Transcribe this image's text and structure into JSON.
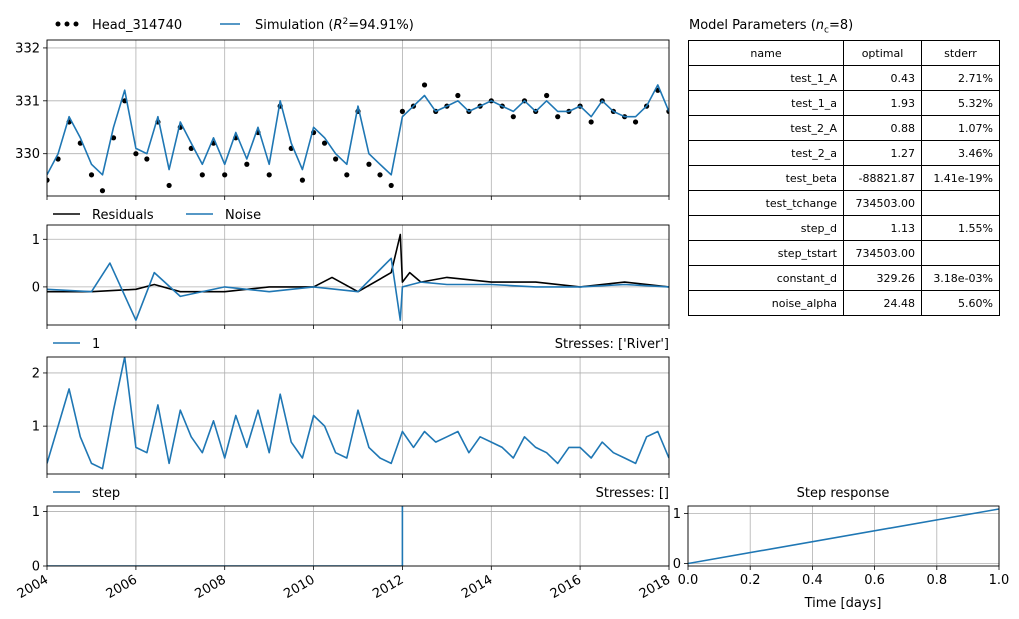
{
  "colors": {
    "head": "#000000",
    "simulation": "#1f77b4",
    "residuals": "#000000",
    "noise": "#1f77b4",
    "stress": "#1f77b4",
    "step": "#1f77b4",
    "grid": "#b0b0b0"
  },
  "legend": {
    "head": "Head_314740",
    "simulation_prefix": "Simulation (",
    "r2_symbol": "R",
    "r2_sup": "2",
    "simulation_suffix": "=94.91%)",
    "residuals": "Residuals",
    "noise": "Noise",
    "river_series": "1",
    "step_series": "step"
  },
  "stresses_labels": {
    "river": "Stresses: ['River']",
    "step": "Stresses: []"
  },
  "parameters": {
    "title_prefix": "Model Parameters (",
    "title_symbol": "n",
    "title_sub": "c",
    "title_suffix": "=8)",
    "columns": [
      "name",
      "optimal",
      "stderr"
    ],
    "rows": [
      [
        "test_1_A",
        "0.43",
        "2.71%"
      ],
      [
        "test_1_a",
        "1.93",
        "5.32%"
      ],
      [
        "test_2_A",
        "0.88",
        "1.07%"
      ],
      [
        "test_2_a",
        "1.27",
        "3.46%"
      ],
      [
        "test_beta",
        "-88821.87",
        "1.41e-19%"
      ],
      [
        "test_tchange",
        "734503.00",
        ""
      ],
      [
        "step_d",
        "1.13",
        "1.55%"
      ],
      [
        "step_tstart",
        "734503.00",
        ""
      ],
      [
        "constant_d",
        "329.26",
        "3.18e-03%"
      ],
      [
        "noise_alpha",
        "24.48",
        "5.60%"
      ]
    ]
  },
  "step_response": {
    "title": "Step response",
    "xlabel": "Time [days]"
  },
  "chart_data": [
    {
      "type": "line",
      "panel": "heads",
      "title": "",
      "xlabel": "",
      "ylabel": "",
      "xlim": [
        "2004-01-01",
        "2018-01-01"
      ],
      "ylim": [
        329.2,
        332.15
      ],
      "yticks": [
        330,
        331,
        332
      ],
      "grid": true,
      "legend": "top-left, above axes",
      "series": [
        {
          "name": "Head_314740",
          "style": "markers",
          "x": [
            "2004-01-01",
            "2004-04-01",
            "2004-07-01",
            "2004-10-01",
            "2005-01-01",
            "2005-04-01",
            "2005-07-01",
            "2005-10-01",
            "2006-01-01",
            "2006-04-01",
            "2006-07-01",
            "2006-10-01",
            "2007-01-01",
            "2007-04-01",
            "2007-07-01",
            "2007-10-01",
            "2008-01-01",
            "2008-04-01",
            "2008-07-01",
            "2008-10-01",
            "2009-01-01",
            "2009-04-01",
            "2009-07-01",
            "2009-10-01",
            "2010-01-01",
            "2010-04-01",
            "2010-07-01",
            "2010-10-01",
            "2011-01-01",
            "2011-04-01",
            "2011-07-01",
            "2011-10-01",
            "2012-01-01",
            "2012-04-01",
            "2012-07-01",
            "2012-10-01",
            "2013-01-01",
            "2013-04-01",
            "2013-07-01",
            "2013-10-01",
            "2014-01-01",
            "2014-04-01",
            "2014-07-01",
            "2014-10-01",
            "2015-01-01",
            "2015-04-01",
            "2015-07-01",
            "2015-10-01",
            "2016-01-01",
            "2016-04-01",
            "2016-07-01",
            "2016-10-01",
            "2017-01-01",
            "2017-04-01",
            "2017-07-01",
            "2017-10-01",
            "2017-12-31"
          ],
          "y": [
            329.5,
            329.9,
            330.6,
            330.2,
            329.6,
            329.3,
            330.3,
            331.0,
            330.0,
            329.9,
            330.6,
            329.4,
            330.5,
            330.1,
            329.6,
            330.2,
            329.6,
            330.3,
            329.8,
            330.4,
            329.6,
            330.9,
            330.1,
            329.5,
            330.4,
            330.2,
            329.9,
            329.6,
            330.8,
            329.8,
            329.6,
            329.4,
            330.8,
            330.9,
            331.3,
            330.8,
            330.9,
            331.1,
            330.8,
            330.9,
            331.0,
            330.9,
            330.7,
            331.0,
            330.8,
            331.1,
            330.7,
            330.8,
            330.9,
            330.6,
            331.0,
            330.8,
            330.7,
            330.6,
            330.9,
            331.2,
            330.8
          ]
        },
        {
          "name": "Simulation (R2=94.91%)",
          "style": "line",
          "x": [
            "2004-01-01",
            "2004-04-01",
            "2004-07-01",
            "2004-10-01",
            "2005-01-01",
            "2005-04-01",
            "2005-07-01",
            "2005-10-01",
            "2006-01-01",
            "2006-04-01",
            "2006-07-01",
            "2006-10-01",
            "2007-01-01",
            "2007-04-01",
            "2007-07-01",
            "2007-10-01",
            "2008-01-01",
            "2008-04-01",
            "2008-07-01",
            "2008-10-01",
            "2009-01-01",
            "2009-04-01",
            "2009-07-01",
            "2009-10-01",
            "2010-01-01",
            "2010-04-01",
            "2010-07-01",
            "2010-10-01",
            "2011-01-01",
            "2011-04-01",
            "2011-07-01",
            "2011-10-01",
            "2012-01-01",
            "2012-04-01",
            "2012-07-01",
            "2012-10-01",
            "2013-01-01",
            "2013-04-01",
            "2013-07-01",
            "2013-10-01",
            "2014-01-01",
            "2014-04-01",
            "2014-07-01",
            "2014-10-01",
            "2015-01-01",
            "2015-04-01",
            "2015-07-01",
            "2015-10-01",
            "2016-01-01",
            "2016-04-01",
            "2016-07-01",
            "2016-10-01",
            "2017-01-01",
            "2017-04-01",
            "2017-07-01",
            "2017-10-01",
            "2017-12-31"
          ],
          "y": [
            329.6,
            330.0,
            330.7,
            330.3,
            329.8,
            329.6,
            330.5,
            331.2,
            330.1,
            330.0,
            330.7,
            329.7,
            330.6,
            330.2,
            329.8,
            330.3,
            329.8,
            330.4,
            329.9,
            330.5,
            329.8,
            331.0,
            330.2,
            329.7,
            330.5,
            330.3,
            330.0,
            329.8,
            330.9,
            330.0,
            329.8,
            329.6,
            330.7,
            330.9,
            331.1,
            330.8,
            330.9,
            331.0,
            330.8,
            330.9,
            331.0,
            330.9,
            330.8,
            331.0,
            330.8,
            331.0,
            330.8,
            330.8,
            330.9,
            330.7,
            331.0,
            330.8,
            330.7,
            330.7,
            330.9,
            331.3,
            330.8
          ]
        }
      ]
    },
    {
      "type": "line",
      "panel": "residuals",
      "title": "",
      "xlabel": "",
      "ylabel": "",
      "xlim": [
        "2004-01-01",
        "2018-01-01"
      ],
      "ylim": [
        -0.8,
        1.3
      ],
      "yticks": [
        0,
        1
      ],
      "grid": true,
      "legend": "top-left, above axes",
      "series": [
        {
          "name": "Residuals",
          "x": [
            "2004-01-01",
            "2005-01-01",
            "2006-01-01",
            "2006-06-01",
            "2007-01-01",
            "2008-01-01",
            "2009-01-01",
            "2010-01-01",
            "2010-06-01",
            "2011-01-01",
            "2011-10-01",
            "2011-12-15",
            "2012-01-01",
            "2012-03-01",
            "2012-06-01",
            "2013-01-01",
            "2014-01-01",
            "2015-01-01",
            "2016-01-01",
            "2017-01-01",
            "2017-12-31"
          ],
          "y": [
            -0.1,
            -0.1,
            -0.05,
            0.05,
            -0.1,
            -0.1,
            0.0,
            0.0,
            0.2,
            -0.1,
            0.3,
            1.1,
            0.1,
            0.3,
            0.1,
            0.2,
            0.1,
            0.1,
            0.0,
            0.1,
            0.0
          ]
        },
        {
          "name": "Noise",
          "x": [
            "2004-01-01",
            "2005-01-01",
            "2005-06-01",
            "2006-01-01",
            "2006-06-01",
            "2007-01-01",
            "2008-01-01",
            "2009-01-01",
            "2010-01-01",
            "2011-01-01",
            "2011-10-01",
            "2011-12-15",
            "2012-01-01",
            "2012-06-01",
            "2013-01-01",
            "2014-01-01",
            "2015-01-01",
            "2016-01-01",
            "2017-01-01",
            "2017-12-31"
          ],
          "y": [
            -0.05,
            -0.1,
            0.5,
            -0.7,
            0.3,
            -0.2,
            0.0,
            -0.1,
            0.0,
            -0.1,
            0.6,
            -0.7,
            0.0,
            0.1,
            0.05,
            0.05,
            0.0,
            0.0,
            0.05,
            0.0
          ]
        }
      ]
    },
    {
      "type": "line",
      "panel": "river",
      "title": "",
      "xlabel": "",
      "ylabel": "",
      "xlim": [
        "2004-01-01",
        "2018-01-01"
      ],
      "ylim": [
        0.1,
        2.3
      ],
      "yticks": [
        1,
        2
      ],
      "grid": true,
      "legend": "top-left, above axes",
      "series": [
        {
          "name": "1",
          "x": [
            "2004-01-01",
            "2004-04-01",
            "2004-07-01",
            "2004-10-01",
            "2005-01-01",
            "2005-04-01",
            "2005-07-01",
            "2005-10-01",
            "2006-01-01",
            "2006-04-01",
            "2006-07-01",
            "2006-10-01",
            "2007-01-01",
            "2007-04-01",
            "2007-07-01",
            "2007-10-01",
            "2008-01-01",
            "2008-04-01",
            "2008-07-01",
            "2008-10-01",
            "2009-01-01",
            "2009-04-01",
            "2009-07-01",
            "2009-10-01",
            "2010-01-01",
            "2010-04-01",
            "2010-07-01",
            "2010-10-01",
            "2011-01-01",
            "2011-04-01",
            "2011-07-01",
            "2011-10-01",
            "2012-01-01",
            "2012-04-01",
            "2012-07-01",
            "2012-10-01",
            "2013-01-01",
            "2013-04-01",
            "2013-07-01",
            "2013-10-01",
            "2014-01-01",
            "2014-04-01",
            "2014-07-01",
            "2014-10-01",
            "2015-01-01",
            "2015-04-01",
            "2015-07-01",
            "2015-10-01",
            "2016-01-01",
            "2016-04-01",
            "2016-07-01",
            "2016-10-01",
            "2017-01-01",
            "2017-04-01",
            "2017-07-01",
            "2017-10-01",
            "2017-12-31"
          ],
          "y": [
            0.3,
            1.0,
            1.7,
            0.8,
            0.3,
            0.2,
            1.3,
            2.3,
            0.6,
            0.5,
            1.4,
            0.3,
            1.3,
            0.8,
            0.5,
            1.1,
            0.4,
            1.2,
            0.6,
            1.3,
            0.5,
            1.6,
            0.7,
            0.4,
            1.2,
            1.0,
            0.5,
            0.4,
            1.3,
            0.6,
            0.4,
            0.3,
            0.9,
            0.6,
            0.9,
            0.7,
            0.8,
            0.9,
            0.5,
            0.8,
            0.7,
            0.6,
            0.4,
            0.8,
            0.6,
            0.5,
            0.3,
            0.6,
            0.6,
            0.4,
            0.7,
            0.5,
            0.4,
            0.3,
            0.8,
            0.9,
            0.4
          ]
        }
      ]
    },
    {
      "type": "line",
      "panel": "step",
      "title": "",
      "xlabel": "",
      "ylabel": "",
      "xlim": [
        "2004-01-01",
        "2018-01-01"
      ],
      "xticks": [
        "2004",
        "2006",
        "2008",
        "2010",
        "2012",
        "2014",
        "2016",
        "2018"
      ],
      "ylim": [
        0,
        1.1
      ],
      "yticks": [
        0,
        1
      ],
      "grid": true,
      "legend": "top-left, above axes",
      "series": [
        {
          "name": "step",
          "x": [
            "2004-01-01",
            "2011-12-31",
            "2012-01-01",
            "2012-01-01"
          ],
          "y": [
            0,
            0,
            0,
            1.13
          ]
        }
      ]
    },
    {
      "type": "line",
      "panel": "step_response",
      "title": "Step response",
      "xlabel": "Time [days]",
      "ylabel": "",
      "xlim": [
        0,
        1.0
      ],
      "xticks": [
        0.0,
        0.2,
        0.4,
        0.6,
        0.8,
        1.0
      ],
      "ylim": [
        -0.05,
        1.15
      ],
      "yticks": [
        0,
        1
      ],
      "grid": true,
      "series": [
        {
          "x": [
            0,
            1.0
          ],
          "y": [
            0,
            1.09
          ]
        }
      ]
    }
  ]
}
